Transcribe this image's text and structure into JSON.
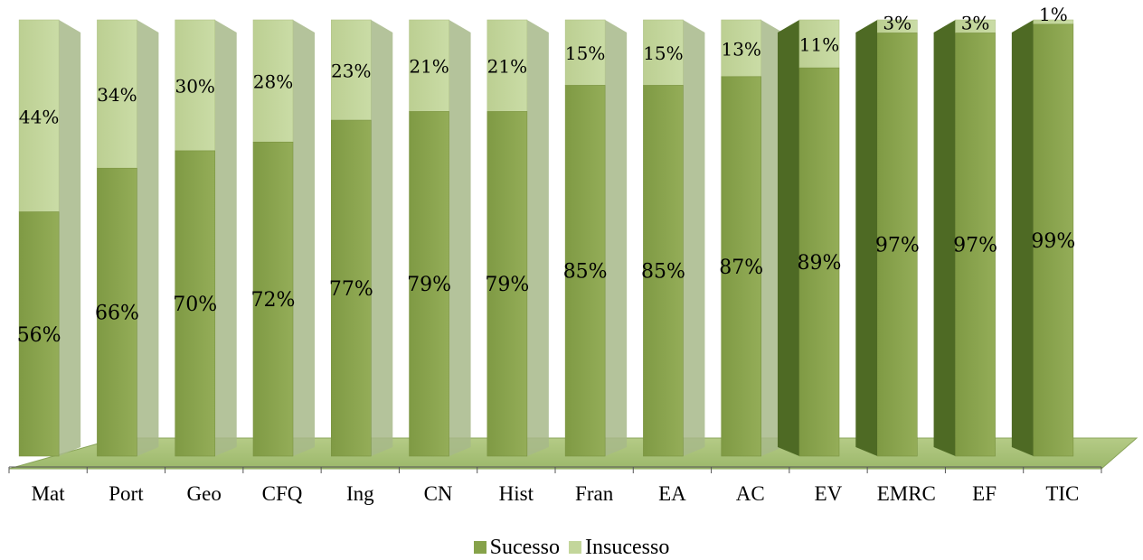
{
  "chart_data": {
    "type": "bar",
    "stacked": true,
    "percent": true,
    "categories": [
      "Mat",
      "Port",
      "Geo",
      "CFQ",
      "Ing",
      "CN",
      "Hist",
      "Fran",
      "EA",
      "AC",
      "EV",
      "EMRC",
      "EF",
      "TIC"
    ],
    "series": [
      {
        "name": "Sucesso",
        "color": "#86a24a",
        "values": [
          56,
          66,
          70,
          72,
          77,
          79,
          79,
          85,
          85,
          87,
          89,
          97,
          97,
          99
        ],
        "labels": [
          "56%",
          "66%",
          "70%",
          "72%",
          "77%",
          "79%",
          "79%",
          "85%",
          "85%",
          "87%",
          "89%",
          "97%",
          "97%",
          "99%"
        ]
      },
      {
        "name": "Insucesso",
        "color": "#c3d69b",
        "values": [
          44,
          34,
          30,
          28,
          23,
          21,
          21,
          15,
          15,
          13,
          11,
          3,
          3,
          1
        ],
        "labels": [
          "44%",
          "34%",
          "30%",
          "28%",
          "23%",
          "21%",
          "21%",
          "15%",
          "15%",
          "13%",
          "11%",
          "3%",
          "3%",
          "1%"
        ]
      }
    ],
    "ylim": [
      0,
      100
    ],
    "title": "",
    "xlabel": "",
    "ylabel": "",
    "grid": false,
    "legend": "bottom",
    "colors": {
      "floor": "#a9c27a",
      "floor_edge": "#8aa55a",
      "side_dark": "#4e6a24",
      "side_light": "#a7b88a"
    }
  }
}
